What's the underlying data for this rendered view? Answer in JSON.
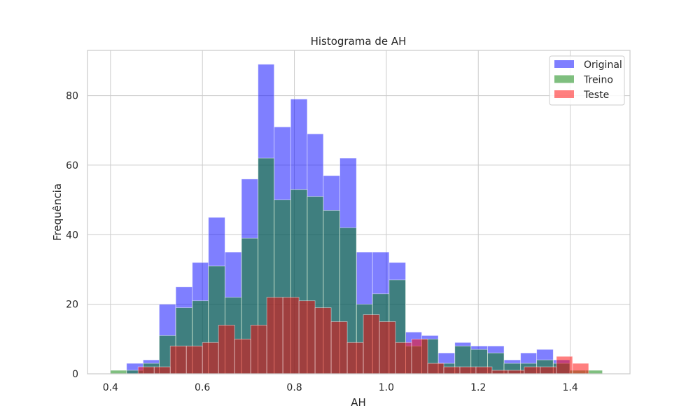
{
  "chart_data": {
    "type": "histogram",
    "title": "Histograma de AH",
    "xlabel": "AH",
    "ylabel": "Frequência",
    "xlim": [
      0.35,
      1.53
    ],
    "ylim": [
      0,
      93
    ],
    "xticks": [
      0.4,
      0.6,
      0.8,
      1.0,
      1.2,
      1.4
    ],
    "xtick_labels": [
      "0.4",
      "0.6",
      "0.8",
      "1.0",
      "1.2",
      "1.4"
    ],
    "yticks": [
      0,
      20,
      40,
      60,
      80
    ],
    "ytick_labels": [
      "0",
      "20",
      "40",
      "60",
      "80"
    ],
    "grid": true,
    "legend_position": "top-right",
    "series": [
      {
        "name": "Original",
        "color": "#0000ff",
        "alpha": 0.5,
        "bins": [
          [
            0.435,
            0.471,
            3
          ],
          [
            0.471,
            0.506,
            4
          ],
          [
            0.506,
            0.542,
            20
          ],
          [
            0.542,
            0.578,
            25
          ],
          [
            0.578,
            0.613,
            32
          ],
          [
            0.613,
            0.649,
            45
          ],
          [
            0.649,
            0.685,
            35
          ],
          [
            0.685,
            0.721,
            56
          ],
          [
            0.721,
            0.756,
            89
          ],
          [
            0.756,
            0.792,
            71
          ],
          [
            0.792,
            0.828,
            79
          ],
          [
            0.828,
            0.863,
            69
          ],
          [
            0.863,
            0.899,
            57
          ],
          [
            0.899,
            0.935,
            62
          ],
          [
            0.935,
            0.97,
            35
          ],
          [
            0.97,
            1.006,
            35
          ],
          [
            1.006,
            1.042,
            32
          ],
          [
            1.042,
            1.077,
            12
          ],
          [
            1.077,
            1.113,
            11
          ],
          [
            1.113,
            1.149,
            6
          ],
          [
            1.149,
            1.184,
            9
          ],
          [
            1.184,
            1.22,
            8
          ],
          [
            1.22,
            1.256,
            8
          ],
          [
            1.256,
            1.292,
            4
          ],
          [
            1.292,
            1.327,
            6
          ],
          [
            1.327,
            1.363,
            7
          ],
          [
            1.363,
            1.399,
            4
          ]
        ]
      },
      {
        "name": "Treino",
        "color": "#008000",
        "alpha": 0.5,
        "bins": [
          [
            0.4,
            0.435,
            1
          ],
          [
            0.435,
            0.471,
            1
          ],
          [
            0.471,
            0.506,
            3
          ],
          [
            0.506,
            0.542,
            11
          ],
          [
            0.542,
            0.578,
            19
          ],
          [
            0.578,
            0.613,
            21
          ],
          [
            0.613,
            0.649,
            31
          ],
          [
            0.649,
            0.685,
            22
          ],
          [
            0.685,
            0.721,
            39
          ],
          [
            0.721,
            0.756,
            62
          ],
          [
            0.756,
            0.792,
            50
          ],
          [
            0.792,
            0.828,
            53
          ],
          [
            0.828,
            0.863,
            51
          ],
          [
            0.863,
            0.899,
            47
          ],
          [
            0.899,
            0.935,
            42
          ],
          [
            0.935,
            0.97,
            20
          ],
          [
            0.97,
            1.006,
            23
          ],
          [
            1.006,
            1.042,
            27
          ],
          [
            1.042,
            1.077,
            8
          ],
          [
            1.077,
            1.113,
            10
          ],
          [
            1.113,
            1.149,
            3
          ],
          [
            1.149,
            1.184,
            8
          ],
          [
            1.184,
            1.22,
            7
          ],
          [
            1.22,
            1.256,
            6
          ],
          [
            1.256,
            1.292,
            3
          ],
          [
            1.292,
            1.327,
            3
          ],
          [
            1.327,
            1.363,
            4
          ],
          [
            1.363,
            1.399,
            3
          ],
          [
            1.399,
            1.434,
            1
          ],
          [
            1.434,
            1.47,
            1
          ]
        ]
      },
      {
        "name": "Teste",
        "color": "#ff0000",
        "alpha": 0.5,
        "bins": [
          [
            0.46,
            0.495,
            2
          ],
          [
            0.495,
            0.53,
            2
          ],
          [
            0.53,
            0.565,
            8
          ],
          [
            0.565,
            0.6,
            8
          ],
          [
            0.6,
            0.635,
            9
          ],
          [
            0.635,
            0.67,
            14
          ],
          [
            0.67,
            0.705,
            10
          ],
          [
            0.705,
            0.74,
            14
          ],
          [
            0.74,
            0.775,
            22
          ],
          [
            0.775,
            0.81,
            22
          ],
          [
            0.81,
            0.845,
            21
          ],
          [
            0.845,
            0.88,
            19
          ],
          [
            0.88,
            0.915,
            15
          ],
          [
            0.915,
            0.95,
            9
          ],
          [
            0.95,
            0.985,
            17
          ],
          [
            0.985,
            1.02,
            15
          ],
          [
            1.02,
            1.055,
            9
          ],
          [
            1.055,
            1.09,
            10
          ],
          [
            1.09,
            1.125,
            3
          ],
          [
            1.125,
            1.16,
            2
          ],
          [
            1.16,
            1.195,
            2
          ],
          [
            1.195,
            1.23,
            2
          ],
          [
            1.23,
            1.265,
            1
          ],
          [
            1.265,
            1.3,
            1
          ],
          [
            1.3,
            1.335,
            2
          ],
          [
            1.335,
            1.37,
            2
          ],
          [
            1.37,
            1.405,
            5
          ],
          [
            1.405,
            1.44,
            3
          ]
        ]
      }
    ]
  }
}
